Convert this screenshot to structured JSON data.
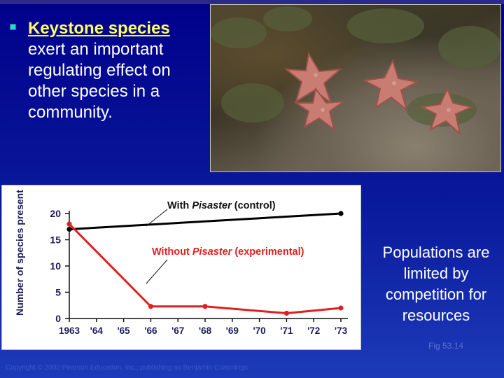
{
  "slide": {
    "bullet_keyword": "Keystone species",
    "bullet_rest": " exert an important regulating effect on other species in a community.",
    "side_text": "Populations are limited by competition for resources",
    "fig_label": "Fig 53.14",
    "copyright": "Copyright © 2002 Pearson Education, Inc., publishing as Benjamin Cummings",
    "photo_icon": "sea-star-tide-pool-photo"
  },
  "chart_data": {
    "type": "line",
    "ylabel": "Number of species present",
    "xlabel": "",
    "x": [
      1963,
      1964,
      1965,
      1966,
      1967,
      1968,
      1969,
      1970,
      1971,
      1972,
      1973
    ],
    "xtick_labels": [
      "1963",
      "'64",
      "'65",
      "'66",
      "'67",
      "'68",
      "'69",
      "'70",
      "'71",
      "'72",
      "'73"
    ],
    "ylim": [
      0,
      20
    ],
    "yticks": [
      0,
      5,
      10,
      15,
      20
    ],
    "grid": false,
    "series": [
      {
        "name": "With Pisaster (control)",
        "name_plain": "With ",
        "name_italic": "Pisaster",
        "name_suffix": " (control)",
        "color": "#000000",
        "points": [
          [
            1963,
            17
          ],
          [
            1973,
            20
          ]
        ]
      },
      {
        "name": "Without Pisaster (experimental)",
        "name_plain": "Without ",
        "name_italic": "Pisaster",
        "name_suffix": " (experimental)",
        "color": "#e02020",
        "points": [
          [
            1963,
            18
          ],
          [
            1966,
            2.3
          ],
          [
            1968,
            2.3
          ],
          [
            1971,
            1
          ],
          [
            1973,
            2
          ]
        ]
      }
    ]
  }
}
